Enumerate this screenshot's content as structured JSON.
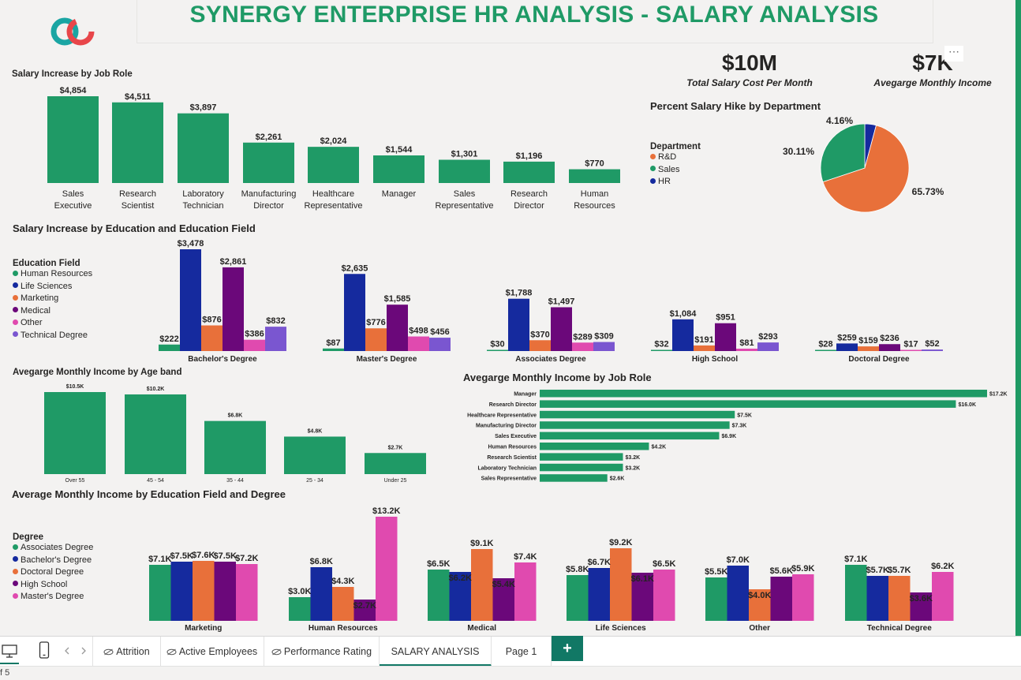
{
  "header": {
    "title": "SYNERGY ENTERPRISE HR ANALYSIS - SALARY ANALYSIS"
  },
  "kpis": [
    {
      "value": "$10M",
      "label": "Total Salary Cost Per Month"
    },
    {
      "value": "$7K",
      "label": "Avegarge Monthly Income"
    }
  ],
  "more_options": "⋯",
  "colors": {
    "green": "#1f9a66",
    "navy": "#152a9e",
    "orange": "#e8703a",
    "purple": "#6b087a",
    "pink": "#e04aaf",
    "violet": "#7a56d0",
    "brand_teal": "#1aa5a3",
    "brand_red": "#e8464a"
  },
  "chart_data": [
    {
      "id": "job_role_increase",
      "type": "bar",
      "title": "Salary Increase by Job Role",
      "categories": [
        "Sales Executive",
        "Research Scientist",
        "Laboratory Technician",
        "Manufacturing Director",
        "Healthcare Representative",
        "Manager",
        "Sales Representative",
        "Research Director",
        "Human Resources"
      ],
      "values": [
        4854,
        4511,
        3897,
        2261,
        2024,
        1544,
        1301,
        1196,
        770
      ],
      "labels": [
        "$4,854",
        "$4,511",
        "$3,897",
        "$2,261",
        "$2,024",
        "$1,544",
        "$1,301",
        "$1,196",
        "$770"
      ]
    },
    {
      "id": "dept_hike",
      "type": "pie",
      "title": "Percent Salary Hike by Department",
      "legend_title": "Department",
      "slices": [
        {
          "name": "R&D",
          "value": 65.73,
          "label": "65.73%",
          "color": "#e8703a"
        },
        {
          "name": "Sales",
          "value": 30.11,
          "label": "30.11%",
          "color": "#1f9a66"
        },
        {
          "name": "HR",
          "value": 4.16,
          "label": "4.16%",
          "color": "#152a9e"
        }
      ]
    },
    {
      "id": "education_increase",
      "type": "bar",
      "title": "Salary Increase by Education and Education Field",
      "legend_title": "Education Field",
      "categories": [
        "Bachelor's Degree",
        "Master's Degree",
        "Associates Degree",
        "High School",
        "Doctoral Degree"
      ],
      "series": [
        {
          "name": "Human Resources",
          "color": "#1f9a66",
          "values": [
            222,
            87,
            30,
            32,
            28
          ],
          "labels": [
            "$222",
            "$87",
            "$30",
            "$32",
            "$28"
          ]
        },
        {
          "name": "Life Sciences",
          "color": "#152a9e",
          "values": [
            3478,
            2635,
            1788,
            1084,
            259
          ],
          "labels": [
            "$3,478",
            "$2,635",
            "$1,788",
            "$1,084",
            "$259"
          ]
        },
        {
          "name": "Marketing",
          "color": "#e8703a",
          "values": [
            876,
            776,
            370,
            191,
            159
          ],
          "labels": [
            "$876",
            "$776",
            "$370",
            "$191",
            "$159"
          ]
        },
        {
          "name": "Medical",
          "color": "#6b087a",
          "values": [
            2861,
            1585,
            1497,
            951,
            236
          ],
          "labels": [
            "$2,861",
            "$1,585",
            "$1,497",
            "$951",
            "$236"
          ]
        },
        {
          "name": "Other",
          "color": "#e04aaf",
          "values": [
            386,
            498,
            289,
            81,
            17
          ],
          "labels": [
            "$386",
            "$498",
            "$289",
            "$81",
            "$17"
          ]
        },
        {
          "name": "Technical Degree",
          "color": "#7a56d0",
          "values": [
            832,
            456,
            309,
            293,
            52
          ],
          "labels": [
            "$832",
            "$456",
            "$309",
            "$293",
            "$52"
          ]
        }
      ]
    },
    {
      "id": "age_band_income",
      "type": "bar",
      "title": "Avegarge Monthly Income by Age band",
      "categories": [
        "Over 55",
        "45 - 54",
        "35 - 44",
        "25 - 34",
        "Under 25"
      ],
      "values": [
        10500,
        10200,
        6800,
        4800,
        2700
      ],
      "labels": [
        "$10.5K",
        "$10.2K",
        "$6.8K",
        "$4.8K",
        "$2.7K"
      ]
    },
    {
      "id": "job_role_income",
      "type": "bar",
      "orientation": "horizontal",
      "title": "Avegarge Monthly Income by Job Role",
      "categories": [
        "Manager",
        "Research Director",
        "Healthcare Representative",
        "Manufacturing Director",
        "Sales Executive",
        "Human Resources",
        "Research Scientist",
        "Laboratory Technician",
        "Sales Representative"
      ],
      "values": [
        17200,
        16000,
        7500,
        7300,
        6900,
        4200,
        3200,
        3200,
        2600
      ],
      "labels": [
        "$17.2K",
        "$16.0K",
        "$7.5K",
        "$7.3K",
        "$6.9K",
        "$4.2K",
        "$3.2K",
        "$3.2K",
        "$2.6K"
      ]
    },
    {
      "id": "field_degree_income",
      "type": "bar",
      "title": "Average Monthly Income by Education Field and Degree",
      "legend_title": "Degree",
      "categories": [
        "Marketing",
        "Human Resources",
        "Medical",
        "Life Sciences",
        "Other",
        "Technical Degree"
      ],
      "series": [
        {
          "name": "Associates Degree",
          "color": "#1f9a66",
          "values": [
            7100,
            3000,
            6500,
            5800,
            5500,
            7100
          ],
          "labels": [
            "$7.1K",
            "$3.0K",
            "$6.5K",
            "$5.8K",
            "$5.5K",
            "$7.1K"
          ]
        },
        {
          "name": "Bachelor's Degree",
          "color": "#152a9e",
          "values": [
            7500,
            6800,
            6200,
            6700,
            7000,
            5700
          ],
          "labels": [
            "$7.5K",
            "$6.8K",
            "$6.2K",
            "$6.7K",
            "$7.0K",
            "$5.7K"
          ]
        },
        {
          "name": "Doctoral Degree",
          "color": "#e8703a",
          "values": [
            7600,
            4300,
            9100,
            9200,
            4000,
            5700
          ],
          "labels": [
            "$7.6K",
            "$4.3K",
            "$9.1K",
            "$9.2K",
            "$4.0K",
            "$5.7K"
          ]
        },
        {
          "name": "High School",
          "color": "#6b087a",
          "values": [
            7500,
            2700,
            5400,
            6100,
            5600,
            3600
          ],
          "labels": [
            "$7.5K",
            "$2.7K",
            "$5.4K",
            "$6.1K",
            "$5.6K",
            "$3.6K"
          ]
        },
        {
          "name": "Master's Degree",
          "color": "#e04aaf",
          "values": [
            7200,
            13200,
            7400,
            6500,
            5900,
            6200
          ],
          "labels": [
            "$7.2K",
            "$13.2K",
            "$7.4K",
            "$6.5K",
            "$5.9K",
            "$6.2K"
          ]
        }
      ]
    }
  ],
  "tabs": [
    {
      "label": "Attrition",
      "hidden": true
    },
    {
      "label": "Active Employees",
      "hidden": true
    },
    {
      "label": "Performance Rating",
      "hidden": true
    },
    {
      "label": "SALARY ANALYSIS",
      "active": true
    },
    {
      "label": "Page 1"
    }
  ],
  "add_page_label": "+",
  "status": {
    "page_text": "f 5"
  }
}
